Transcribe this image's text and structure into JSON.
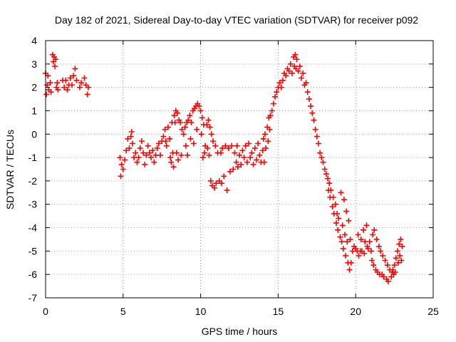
{
  "chart_data": {
    "type": "scatter",
    "title": "Day 182 of 2021, Sidereal Day-to-day VTEC variation (SDTVAR) for receiver p092",
    "xlabel": "GPS time / hours",
    "ylabel": "SDTVAR / TECUs",
    "xlim": [
      0,
      25
    ],
    "ylim": [
      -7,
      4
    ],
    "xticks": [
      "0",
      "5",
      "10",
      "15",
      "20",
      "25"
    ],
    "yticks": [
      "-7",
      "-6",
      "-5",
      "-4",
      "-3",
      "-2",
      "-1",
      "0",
      "1",
      "2",
      "3",
      "4"
    ],
    "grid": true,
    "marker": "+",
    "color": "#ff0000",
    "series": [
      {
        "name": "SDTVAR",
        "points": [
          [
            0.0,
            2.6
          ],
          [
            0.05,
            1.7
          ],
          [
            0.1,
            2.1
          ],
          [
            0.15,
            2.5
          ],
          [
            0.2,
            1.9
          ],
          [
            0.3,
            2.2
          ],
          [
            0.35,
            1.8
          ],
          [
            0.45,
            3.4
          ],
          [
            0.5,
            3.1
          ],
          [
            0.55,
            3.3
          ],
          [
            0.6,
            2.9
          ],
          [
            0.65,
            3.2
          ],
          [
            0.7,
            2.0
          ],
          [
            0.75,
            2.2
          ],
          [
            0.8,
            1.9
          ],
          [
            1.1,
            2.3
          ],
          [
            1.2,
            2.0
          ],
          [
            1.3,
            2.3
          ],
          [
            1.4,
            1.9
          ],
          [
            1.5,
            2.1
          ],
          [
            1.6,
            2.4
          ],
          [
            1.7,
            2.1
          ],
          [
            1.8,
            2.5
          ],
          [
            1.9,
            2.8
          ],
          [
            2.0,
            2.3
          ],
          [
            2.2,
            2.0
          ],
          [
            2.3,
            2.2
          ],
          [
            2.5,
            2.4
          ],
          [
            2.6,
            2.1
          ],
          [
            2.7,
            1.7
          ],
          [
            2.75,
            2.0
          ],
          [
            4.8,
            -1.0
          ],
          [
            4.85,
            -1.8
          ],
          [
            4.9,
            -1.3
          ],
          [
            5.0,
            -1.5
          ],
          [
            5.1,
            -1.1
          ],
          [
            5.2,
            -0.7
          ],
          [
            5.3,
            -0.2
          ],
          [
            5.4,
            -0.6
          ],
          [
            5.5,
            -0.1
          ],
          [
            5.55,
            0.1
          ],
          [
            5.6,
            -0.4
          ],
          [
            5.7,
            -1.0
          ],
          [
            5.8,
            -0.8
          ],
          [
            5.9,
            -1.2
          ],
          [
            6.0,
            -1.0
          ],
          [
            6.1,
            -0.6
          ],
          [
            6.2,
            -0.3
          ],
          [
            6.3,
            -0.8
          ],
          [
            6.4,
            -1.3
          ],
          [
            6.5,
            -0.9
          ],
          [
            6.6,
            -0.5
          ],
          [
            6.7,
            -0.8
          ],
          [
            6.8,
            -1.0
          ],
          [
            6.9,
            -0.7
          ],
          [
            7.0,
            -1.2
          ],
          [
            7.1,
            -0.9
          ],
          [
            7.2,
            -0.6
          ],
          [
            7.3,
            -0.4
          ],
          [
            7.4,
            -0.9
          ],
          [
            7.5,
            -0.3
          ],
          [
            7.6,
            -0.1
          ],
          [
            7.7,
            0.2
          ],
          [
            7.75,
            -0.3
          ],
          [
            7.8,
            -0.5
          ],
          [
            7.9,
            0.3
          ],
          [
            8.0,
            -0.2
          ],
          [
            8.05,
            -1.0
          ],
          [
            8.1,
            -1.2
          ],
          [
            8.15,
            0.5
          ],
          [
            8.2,
            -0.8
          ],
          [
            8.25,
            -1.4
          ],
          [
            8.3,
            0.8
          ],
          [
            8.35,
            0.5
          ],
          [
            8.4,
            1.0
          ],
          [
            8.45,
            -0.8
          ],
          [
            8.5,
            0.9
          ],
          [
            8.55,
            -1.1
          ],
          [
            8.6,
            0.6
          ],
          [
            8.7,
            0.5
          ],
          [
            8.75,
            -0.9
          ],
          [
            8.8,
            0.2
          ],
          [
            8.9,
            0.0
          ],
          [
            9.0,
            0.3
          ],
          [
            9.05,
            -0.5
          ],
          [
            9.1,
            0.5
          ],
          [
            9.15,
            -0.9
          ],
          [
            9.2,
            0.6
          ],
          [
            9.3,
            0.8
          ],
          [
            9.35,
            -0.2
          ],
          [
            9.4,
            0.5
          ],
          [
            9.5,
            1.0
          ],
          [
            9.55,
            -0.4
          ],
          [
            9.6,
            1.1
          ],
          [
            9.7,
            1.2
          ],
          [
            9.75,
            0.2
          ],
          [
            9.8,
            1.3
          ],
          [
            9.9,
            1.2
          ],
          [
            10.0,
            1.0
          ],
          [
            10.05,
            0.0
          ],
          [
            10.1,
            0.7
          ],
          [
            10.15,
            -1.0
          ],
          [
            10.2,
            0.4
          ],
          [
            10.25,
            -0.8
          ],
          [
            10.3,
            -0.5
          ],
          [
            10.4,
            0.4
          ],
          [
            10.45,
            -0.6
          ],
          [
            10.5,
            0.6
          ],
          [
            10.55,
            -0.9
          ],
          [
            10.6,
            0.3
          ],
          [
            10.65,
            -2.0
          ],
          [
            10.7,
            0.0
          ],
          [
            10.75,
            -2.2
          ],
          [
            10.8,
            -0.3
          ],
          [
            10.9,
            -2.3
          ],
          [
            10.95,
            -0.5
          ],
          [
            11.0,
            -2.1
          ],
          [
            11.1,
            -0.8
          ],
          [
            11.2,
            -2.0
          ],
          [
            11.3,
            -0.8
          ],
          [
            11.35,
            -2.1
          ],
          [
            11.4,
            -0.6
          ],
          [
            11.5,
            -1.8
          ],
          [
            11.6,
            -0.5
          ],
          [
            11.7,
            -2.4
          ],
          [
            11.8,
            -0.6
          ],
          [
            11.9,
            -1.6
          ],
          [
            12.0,
            -0.5
          ],
          [
            12.1,
            -1.5
          ],
          [
            12.2,
            -0.8
          ],
          [
            12.3,
            -1.2
          ],
          [
            12.35,
            -0.5
          ],
          [
            12.4,
            -1.4
          ],
          [
            12.5,
            -0.9
          ],
          [
            12.6,
            -1.3
          ],
          [
            12.7,
            -0.7
          ],
          [
            12.8,
            -1.0
          ],
          [
            12.9,
            -0.5
          ],
          [
            13.0,
            -1.2
          ],
          [
            13.1,
            -0.4
          ],
          [
            13.2,
            -1.0
          ],
          [
            13.3,
            -0.8
          ],
          [
            13.4,
            -1.3
          ],
          [
            13.5,
            -0.6
          ],
          [
            13.6,
            -1.1
          ],
          [
            13.7,
            -0.4
          ],
          [
            13.8,
            -0.9
          ],
          [
            13.9,
            -1.2
          ],
          [
            14.0,
            -0.7
          ],
          [
            14.05,
            -0.2
          ],
          [
            14.1,
            -1.2
          ],
          [
            14.15,
            0.0
          ],
          [
            14.2,
            -0.6
          ],
          [
            14.3,
            0.3
          ],
          [
            14.35,
            -0.3
          ],
          [
            14.4,
            0.7
          ],
          [
            14.45,
            0.2
          ],
          [
            14.5,
            0.8
          ],
          [
            14.6,
            1.0
          ],
          [
            14.7,
            1.3
          ],
          [
            14.8,
            1.6
          ],
          [
            14.9,
            1.8
          ],
          [
            15.0,
            2.0
          ],
          [
            15.1,
            2.2
          ],
          [
            15.2,
            2.0
          ],
          [
            15.3,
            2.3
          ],
          [
            15.4,
            2.6
          ],
          [
            15.5,
            2.5
          ],
          [
            15.6,
            2.8
          ],
          [
            15.7,
            2.7
          ],
          [
            15.8,
            3.0
          ],
          [
            15.9,
            2.6
          ],
          [
            16.0,
            3.3
          ],
          [
            16.05,
            2.9
          ],
          [
            16.1,
            3.4
          ],
          [
            16.15,
            2.8
          ],
          [
            16.2,
            3.2
          ],
          [
            16.3,
            2.7
          ],
          [
            16.4,
            2.9
          ],
          [
            16.5,
            2.4
          ],
          [
            16.6,
            2.6
          ],
          [
            16.7,
            2.1
          ],
          [
            16.8,
            2.2
          ],
          [
            16.9,
            1.8
          ],
          [
            17.0,
            1.5
          ],
          [
            17.1,
            1.2
          ],
          [
            17.2,
            0.9
          ],
          [
            17.3,
            0.6
          ],
          [
            17.4,
            0.2
          ],
          [
            17.5,
            -0.1
          ],
          [
            17.6,
            -0.4
          ],
          [
            17.7,
            -0.8
          ],
          [
            17.8,
            -1.0
          ],
          [
            17.9,
            -1.2
          ],
          [
            18.0,
            -1.5
          ],
          [
            18.1,
            -1.7
          ],
          [
            18.2,
            -1.9
          ],
          [
            18.25,
            -2.4
          ],
          [
            18.3,
            -2.1
          ],
          [
            18.35,
            -2.7
          ],
          [
            18.4,
            -2.4
          ],
          [
            18.5,
            -3.1
          ],
          [
            18.55,
            -2.7
          ],
          [
            18.6,
            -3.4
          ],
          [
            18.7,
            -3.0
          ],
          [
            18.75,
            -3.8
          ],
          [
            18.8,
            -3.4
          ],
          [
            18.85,
            -4.1
          ],
          [
            18.9,
            -3.6
          ],
          [
            19.0,
            -4.4
          ],
          [
            19.05,
            -2.5
          ],
          [
            19.1,
            -4.6
          ],
          [
            19.15,
            -3.9
          ],
          [
            19.2,
            -4.9
          ],
          [
            19.25,
            -2.8
          ],
          [
            19.3,
            -4.3
          ],
          [
            19.35,
            -5.2
          ],
          [
            19.4,
            -3.3
          ],
          [
            19.45,
            -4.6
          ],
          [
            19.5,
            -5.5
          ],
          [
            19.55,
            -3.7
          ],
          [
            19.6,
            -5.8
          ],
          [
            19.65,
            -4.5
          ],
          [
            19.7,
            -5.5
          ],
          [
            19.8,
            -5.0
          ],
          [
            19.9,
            -4.8
          ],
          [
            20.0,
            -4.9
          ],
          [
            20.1,
            -5.0
          ],
          [
            20.15,
            -4.3
          ],
          [
            20.2,
            -5.2
          ],
          [
            20.3,
            -5.0
          ],
          [
            20.35,
            -4.5
          ],
          [
            20.4,
            -5.0
          ],
          [
            20.5,
            -4.1
          ],
          [
            20.55,
            -5.1
          ],
          [
            20.6,
            -4.6
          ],
          [
            20.7,
            -3.9
          ],
          [
            20.75,
            -4.8
          ],
          [
            20.8,
            -4.9
          ],
          [
            20.9,
            -4.6
          ],
          [
            21.0,
            -5.0
          ],
          [
            21.05,
            -5.4
          ],
          [
            21.1,
            -4.3
          ],
          [
            21.15,
            -5.6
          ],
          [
            21.2,
            -4.1
          ],
          [
            21.3,
            -5.8
          ],
          [
            21.35,
            -4.5
          ],
          [
            21.4,
            -5.9
          ],
          [
            21.5,
            -4.8
          ],
          [
            21.55,
            -6.0
          ],
          [
            21.6,
            -5.0
          ],
          [
            21.7,
            -6.0
          ],
          [
            21.75,
            -5.2
          ],
          [
            21.8,
            -6.1
          ],
          [
            21.9,
            -5.4
          ],
          [
            22.0,
            -6.2
          ],
          [
            22.05,
            -5.6
          ],
          [
            22.1,
            -6.3
          ],
          [
            22.2,
            -5.8
          ],
          [
            22.3,
            -6.1
          ],
          [
            22.35,
            -5.9
          ],
          [
            22.4,
            -5.8
          ],
          [
            22.45,
            -6.0
          ],
          [
            22.5,
            -5.6
          ],
          [
            22.55,
            -5.9
          ],
          [
            22.6,
            -5.3
          ],
          [
            22.7,
            -5.0
          ],
          [
            22.75,
            -5.5
          ],
          [
            22.8,
            -4.7
          ],
          [
            22.85,
            -5.2
          ],
          [
            22.9,
            -4.5
          ],
          [
            22.95,
            -5.4
          ],
          [
            23.0,
            -4.8
          ]
        ]
      }
    ]
  }
}
